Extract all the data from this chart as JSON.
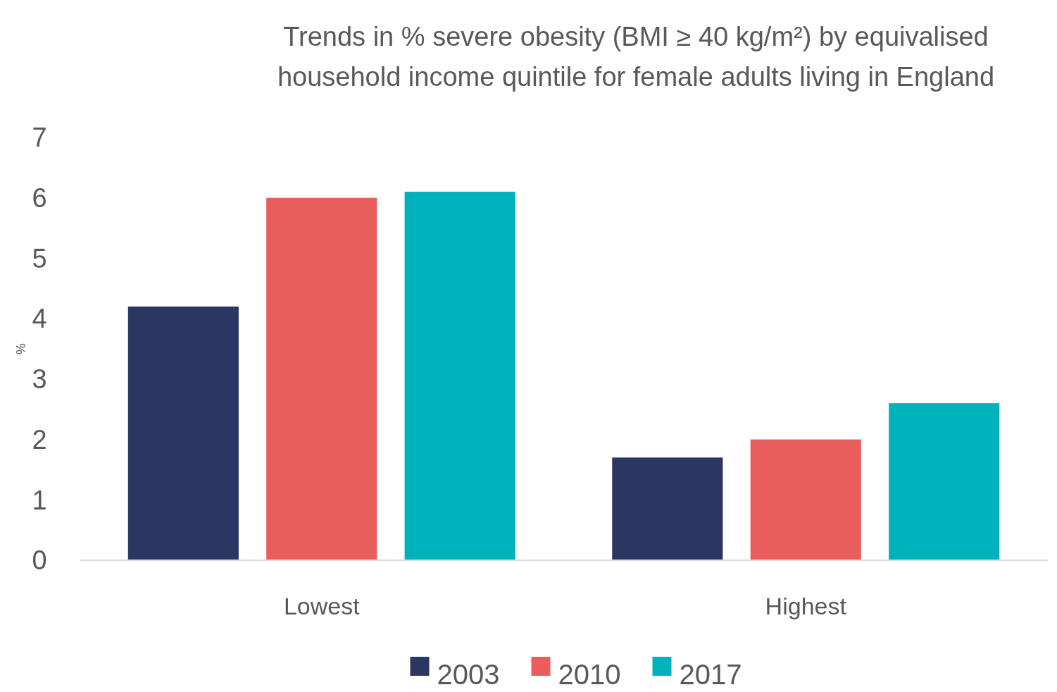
{
  "chart_data": {
    "type": "bar",
    "title": "Trends in % severe obesity (BMI ≥ 40 kg/m²) by equivalised household income quintile for female adults living in England",
    "ylabel": "%",
    "categories": [
      "Lowest",
      "Highest"
    ],
    "series": [
      {
        "name": "2003",
        "color": "#2b3762",
        "values": [
          4.2,
          1.7
        ]
      },
      {
        "name": "2010",
        "color": "#e95e5d",
        "values": [
          6.0,
          2.0
        ]
      },
      {
        "name": "2017",
        "color": "#00b2bc",
        "values": [
          6.1,
          2.6
        ]
      }
    ],
    "ylim": [
      0,
      7
    ],
    "yticks": [
      0,
      1,
      2,
      3,
      4,
      5,
      6,
      7
    ],
    "grid": false,
    "legend": "bottom"
  }
}
